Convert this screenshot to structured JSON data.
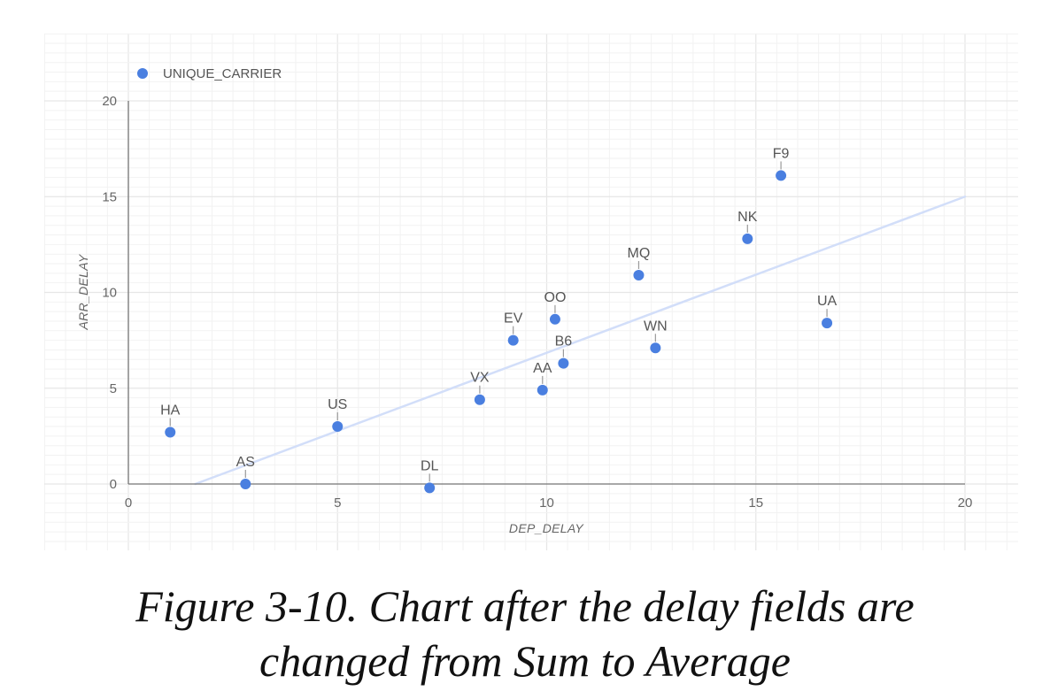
{
  "caption": {
    "line1": "Figure 3-10. Chart after the delay fields are",
    "line2": "changed from Sum to Average"
  },
  "colors": {
    "point": "#4a7fe0",
    "trendline": "#d2def9",
    "axis": "#777777",
    "grid_major": "#e6e6e6",
    "grid_minor": "#f2f2f2"
  },
  "chart_data": {
    "type": "scatter",
    "title": "",
    "xlabel": "DEP_DELAY",
    "ylabel": "ARR_DELAY",
    "xlim": [
      0,
      20
    ],
    "ylim": [
      0,
      20
    ],
    "xticks": [
      "0",
      "5",
      "10",
      "15",
      "20"
    ],
    "yticks": [
      "0",
      "5",
      "10",
      "15",
      "20"
    ],
    "grid": true,
    "legend": {
      "position": "top-left",
      "entries": [
        "UNIQUE_CARRIER"
      ]
    },
    "series": [
      {
        "name": "UNIQUE_CARRIER",
        "points": [
          {
            "label": "HA",
            "x": 1.0,
            "y": 2.7
          },
          {
            "label": "AS",
            "x": 2.8,
            "y": 0.0
          },
          {
            "label": "US",
            "x": 5.0,
            "y": 3.0
          },
          {
            "label": "DL",
            "x": 7.2,
            "y": -0.2
          },
          {
            "label": "VX",
            "x": 8.4,
            "y": 4.4
          },
          {
            "label": "EV",
            "x": 9.2,
            "y": 7.5
          },
          {
            "label": "AA",
            "x": 9.9,
            "y": 4.9
          },
          {
            "label": "OO",
            "x": 10.2,
            "y": 8.6
          },
          {
            "label": "B6",
            "x": 10.4,
            "y": 6.3
          },
          {
            "label": "MQ",
            "x": 12.2,
            "y": 10.9
          },
          {
            "label": "WN",
            "x": 12.6,
            "y": 7.1
          },
          {
            "label": "NK",
            "x": 14.8,
            "y": 12.8
          },
          {
            "label": "F9",
            "x": 15.6,
            "y": 16.1
          },
          {
            "label": "UA",
            "x": 16.7,
            "y": 8.4
          }
        ]
      }
    ],
    "trendline": {
      "type": "linear",
      "start": {
        "x": 1.6,
        "y": 0.0
      },
      "end": {
        "x": 20.0,
        "y": 15.0
      }
    }
  }
}
